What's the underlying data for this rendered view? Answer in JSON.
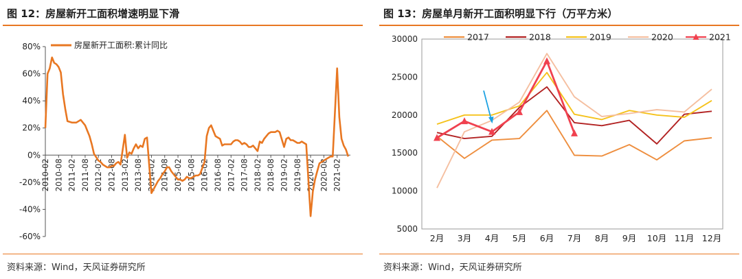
{
  "colors": {
    "accent": "#e87722"
  },
  "left": {
    "title": "图 12：房屋新开工面积增速明显下滑",
    "source": "资料来源：Wind，天风证券研究所"
  },
  "right": {
    "title": "图 13：房屋单月新开工面积明显下行（万平方米）",
    "source": "资料来源：Wind，天风证券研究所"
  },
  "chart_data": [
    {
      "type": "line",
      "title": "",
      "xlabel": "",
      "ylabel": "",
      "ylim": [
        -60,
        80
      ],
      "yticks": [
        80,
        60,
        40,
        20,
        0,
        -20,
        -40,
        -60
      ],
      "ytick_labels": [
        "80%",
        "60%",
        "40%",
        "20%",
        "0%",
        "-20%",
        "-40%",
        "-60%"
      ],
      "xtick_labels": [
        "2010-02",
        "2010-08",
        "2011-02",
        "2011-08",
        "2012-02",
        "2012-08",
        "2013-02",
        "2013-08",
        "2014-02",
        "2014-08",
        "2015-02",
        "2015-08",
        "2016-02",
        "2016-08",
        "2017-02",
        "2017-08",
        "2018-02",
        "2018-08",
        "2019-02",
        "2019-08",
        "2020-02",
        "2020-08",
        "2021-02"
      ],
      "legend_position": "top-left",
      "grid": false,
      "series": [
        {
          "name": "房屋新开工面积:累计同比",
          "color": "#e87722",
          "values": [
            [
              "2010-02",
              20
            ],
            [
              "2010-03",
              60
            ],
            [
              "2010-04",
              64
            ],
            [
              "2010-05",
              72
            ],
            [
              "2010-06",
              68
            ],
            [
              "2010-07",
              67
            ],
            [
              "2010-08",
              65
            ],
            [
              "2010-09",
              61
            ],
            [
              "2010-10",
              45
            ],
            [
              "2010-11",
              34
            ],
            [
              "2010-12",
              25
            ],
            [
              "2011-02",
              24
            ],
            [
              "2011-03",
              24
            ],
            [
              "2011-04",
              24
            ],
            [
              "2011-05",
              25
            ],
            [
              "2011-06",
              26
            ],
            [
              "2011-07",
              24
            ],
            [
              "2011-08",
              22
            ],
            [
              "2011-09",
              18
            ],
            [
              "2011-10",
              14
            ],
            [
              "2011-11",
              8
            ],
            [
              "2011-12",
              1
            ],
            [
              "2012-02",
              -4
            ],
            [
              "2012-03",
              -5
            ],
            [
              "2012-04",
              -7
            ],
            [
              "2012-05",
              -8
            ],
            [
              "2012-06",
              -9
            ],
            [
              "2012-07",
              -9
            ],
            [
              "2012-08",
              -8
            ],
            [
              "2012-09",
              -8
            ],
            [
              "2012-10",
              -6
            ],
            [
              "2012-11",
              -5
            ],
            [
              "2012-12",
              -7
            ],
            [
              "2013-02",
              15
            ],
            [
              "2013-03",
              -2
            ],
            [
              "2013-04",
              2
            ],
            [
              "2013-05",
              1
            ],
            [
              "2013-06",
              5
            ],
            [
              "2013-07",
              8
            ],
            [
              "2013-08",
              5
            ],
            [
              "2013-09",
              7
            ],
            [
              "2013-10",
              6
            ],
            [
              "2013-11",
              12
            ],
            [
              "2013-12",
              13
            ],
            [
              "2014-02",
              -28
            ],
            [
              "2014-03",
              -25
            ],
            [
              "2014-04",
              -22
            ],
            [
              "2014-05",
              -19
            ],
            [
              "2014-06",
              -17
            ],
            [
              "2014-07",
              -14
            ],
            [
              "2014-08",
              -12
            ],
            [
              "2014-09",
              -9
            ],
            [
              "2014-10",
              -9
            ],
            [
              "2014-11",
              -12
            ],
            [
              "2014-12",
              -14
            ],
            [
              "2015-02",
              -18
            ],
            [
              "2015-03",
              -18
            ],
            [
              "2015-04",
              -19
            ],
            [
              "2015-05",
              -18
            ],
            [
              "2015-06",
              -16
            ],
            [
              "2015-07",
              -17
            ],
            [
              "2015-08",
              -17
            ],
            [
              "2015-09",
              -16
            ],
            [
              "2015-10",
              -15
            ],
            [
              "2015-11",
              -15
            ],
            [
              "2015-12",
              -14
            ],
            [
              "2016-02",
              -5
            ],
            [
              "2016-03",
              14
            ],
            [
              "2016-04",
              20
            ],
            [
              "2016-05",
              22
            ],
            [
              "2016-06",
              18
            ],
            [
              "2016-07",
              14
            ],
            [
              "2016-08",
              13
            ],
            [
              "2016-09",
              12
            ],
            [
              "2016-10",
              7
            ],
            [
              "2016-11",
              8
            ],
            [
              "2016-12",
              8
            ],
            [
              "2017-02",
              8
            ],
            [
              "2017-03",
              10
            ],
            [
              "2017-04",
              11
            ],
            [
              "2017-05",
              11
            ],
            [
              "2017-06",
              10
            ],
            [
              "2017-07",
              8
            ],
            [
              "2017-08",
              9
            ],
            [
              "2017-09",
              8
            ],
            [
              "2017-10",
              6
            ],
            [
              "2017-11",
              6
            ],
            [
              "2017-12",
              7
            ],
            [
              "2018-02",
              3
            ],
            [
              "2018-03",
              10
            ],
            [
              "2018-04",
              9
            ],
            [
              "2018-05",
              12
            ],
            [
              "2018-06",
              14
            ],
            [
              "2018-07",
              16
            ],
            [
              "2018-08",
              17
            ],
            [
              "2018-09",
              17
            ],
            [
              "2018-10",
              17
            ],
            [
              "2018-11",
              18
            ],
            [
              "2018-12",
              17
            ],
            [
              "2019-02",
              6
            ],
            [
              "2019-03",
              12
            ],
            [
              "2019-04",
              13
            ],
            [
              "2019-05",
              11
            ],
            [
              "2019-06",
              11
            ],
            [
              "2019-07",
              10
            ],
            [
              "2019-08",
              9
            ],
            [
              "2019-09",
              9
            ],
            [
              "2019-10",
              10
            ],
            [
              "2019-11",
              9
            ],
            [
              "2019-12",
              8
            ],
            [
              "2020-02",
              -45
            ],
            [
              "2020-03",
              -27
            ],
            [
              "2020-04",
              -18
            ],
            [
              "2020-05",
              -12
            ],
            [
              "2020-06",
              -6
            ],
            [
              "2020-07",
              -5
            ],
            [
              "2020-08",
              -4
            ],
            [
              "2020-09",
              -3
            ],
            [
              "2020-10",
              -2
            ],
            [
              "2020-11",
              -1
            ],
            [
              "2020-12",
              -1
            ],
            [
              "2021-02",
              64
            ],
            [
              "2021-03",
              28
            ],
            [
              "2021-04",
              12
            ],
            [
              "2021-05",
              7
            ],
            [
              "2021-06",
              4
            ],
            [
              "2021-07",
              -1
            ]
          ]
        }
      ]
    },
    {
      "type": "line",
      "title": "",
      "xlabel": "",
      "ylabel": "",
      "ylim": [
        5000,
        30000
      ],
      "yticks": [
        30000,
        25000,
        20000,
        15000,
        10000,
        5000
      ],
      "categories": [
        "2月",
        "3月",
        "4月",
        "5月",
        "6月",
        "7月",
        "8月",
        "9月",
        "10月",
        "11月",
        "12月"
      ],
      "legend_position": "top",
      "grid": false,
      "series": [
        {
          "name": "2017",
          "color": "#ee8e3e",
          "values": [
            17200,
            14300,
            16700,
            16900,
            20600,
            14700,
            14600,
            16100,
            14100,
            16600,
            17000
          ]
        },
        {
          "name": "2018",
          "color": "#b22222",
          "values": [
            17700,
            16900,
            17200,
            21000,
            23700,
            19000,
            18600,
            19300,
            16200,
            20100,
            20500
          ]
        },
        {
          "name": "2019",
          "color": "#f5c21b",
          "values": [
            18800,
            20000,
            20000,
            21200,
            25600,
            20100,
            19400,
            20600,
            20000,
            19700,
            21900
          ]
        },
        {
          "name": "2020",
          "color": "#f5bfa0",
          "values": [
            10400,
            17800,
            19300,
            21700,
            28100,
            22400,
            19800,
            20200,
            20700,
            20400,
            23400
          ]
        },
        {
          "name": "2021",
          "color": "#f0414f",
          "marker": "triangle",
          "values": [
            17000,
            19200,
            17800,
            20400,
            27100,
            17600,
            null,
            null,
            null,
            null,
            null
          ]
        }
      ],
      "annotations": [
        {
          "type": "arrow",
          "color": "#1ba1e2",
          "points_to": "4月"
        }
      ]
    }
  ]
}
